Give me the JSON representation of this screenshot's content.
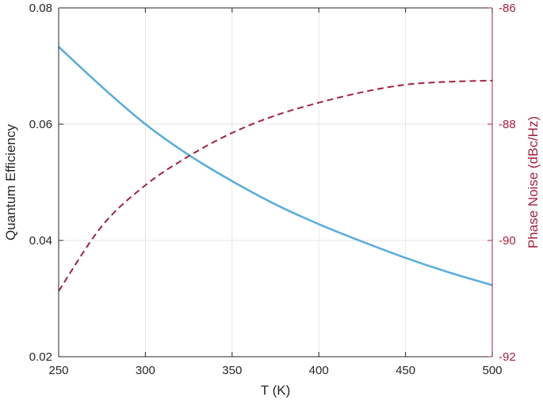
{
  "chart_data": {
    "type": "line",
    "title": "",
    "xlabel": "T (K)",
    "ylabel_left": "Quantum Efficiency",
    "ylabel_right": "Phase Noise (dBc/Hz)",
    "xlim": [
      250,
      500
    ],
    "ylim_left": [
      0.02,
      0.08
    ],
    "ylim_right": [
      -92,
      -86
    ],
    "xticks": [
      "250",
      "300",
      "350",
      "400",
      "450",
      "500"
    ],
    "yticks_left": [
      "0.02",
      "0.04",
      "0.06",
      "0.08"
    ],
    "yticks_right": [
      "-92",
      "-90",
      "-88",
      "-86"
    ],
    "grid": true,
    "x": [
      250,
      275,
      300,
      325,
      350,
      375,
      400,
      425,
      450,
      475,
      500
    ],
    "series": [
      {
        "axis": "left",
        "style": "solid",
        "color": "#5aaedc",
        "values": [
          0.0733,
          0.0664,
          0.06,
          0.0547,
          0.0502,
          0.0462,
          0.0428,
          0.0398,
          0.037,
          0.0345,
          0.0323
        ]
      },
      {
        "axis": "right",
        "style": "dashed",
        "color": "#a3213f",
        "values": [
          -90.87,
          -89.75,
          -89.05,
          -88.55,
          -88.15,
          -87.85,
          -87.63,
          -87.45,
          -87.32,
          -87.27,
          -87.25
        ]
      }
    ],
    "colors": {
      "left_axis": "#262626",
      "right_axis": "#a3213f"
    }
  }
}
